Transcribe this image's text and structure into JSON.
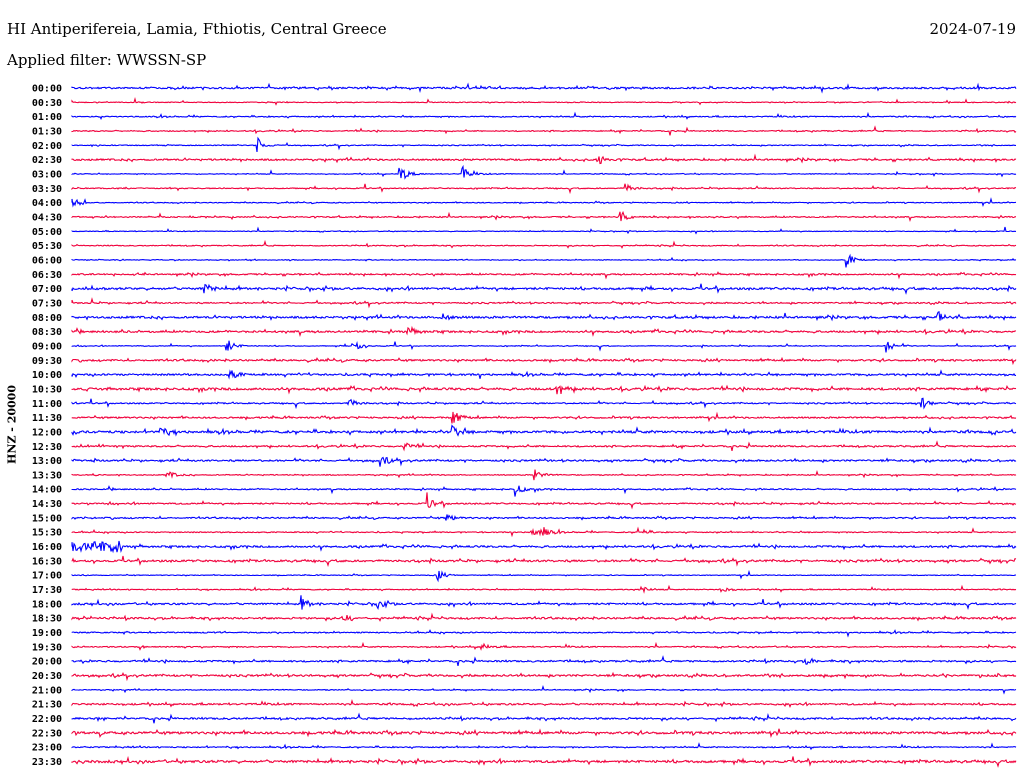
{
  "header": {
    "title": "HI Antiperifereia, Lamia, Fthiotis, Central Greece",
    "date": "2024-07-19",
    "filter": "Applied filter: WWSSN-SP"
  },
  "chart_data": {
    "type": "line",
    "title": "HI Antiperifereia, Lamia, Fthiotis, Central Greece",
    "ylabel": "HNZ - 20000",
    "minutes_per_line": 30,
    "colors": [
      "#0000ff",
      "#f0003c"
    ],
    "line_labels": [
      "00:00",
      "00:30",
      "01:00",
      "01:30",
      "02:00",
      "02:30",
      "03:00",
      "03:30",
      "04:00",
      "04:30",
      "05:00",
      "05:30",
      "06:00",
      "06:30",
      "07:00",
      "07:30",
      "08:00",
      "08:30",
      "09:00",
      "09:30",
      "10:00",
      "10:30",
      "11:00",
      "11:30",
      "12:00",
      "12:30",
      "13:00",
      "13:30",
      "14:00",
      "14:30",
      "15:00",
      "15:30",
      "16:00",
      "16:30",
      "17:00",
      "17:30",
      "18:00",
      "18:30",
      "19:00",
      "19:30",
      "20:00",
      "20:30",
      "21:00",
      "21:30",
      "22:00",
      "22:30",
      "23:00",
      "23:30"
    ],
    "events": [
      {
        "line": "02:00",
        "minute": 5.9,
        "amp": 8
      },
      {
        "line": "02:30",
        "minute": 16.7,
        "amp": 6
      },
      {
        "line": "03:00",
        "minute": 10.4,
        "amp": 10
      },
      {
        "line": "03:00",
        "minute": 12.4,
        "amp": 8
      },
      {
        "line": "03:30",
        "minute": 17.6,
        "amp": 5
      },
      {
        "line": "04:30",
        "minute": 17.4,
        "amp": 6
      },
      {
        "line": "06:00",
        "minute": 24.6,
        "amp": 8
      },
      {
        "line": "07:00",
        "minute": 4.2,
        "amp": 6
      },
      {
        "line": "08:00",
        "minute": 11.7,
        "amp": 5
      },
      {
        "line": "08:00",
        "minute": 27.5,
        "amp": 6
      },
      {
        "line": "08:30",
        "minute": 10.7,
        "amp": 6
      },
      {
        "line": "09:00",
        "minute": 4.9,
        "amp": 8
      },
      {
        "line": "09:00",
        "minute": 8.9,
        "amp": 8
      },
      {
        "line": "09:00",
        "minute": 25.9,
        "amp": 6
      },
      {
        "line": "10:00",
        "minute": 5.0,
        "amp": 6
      },
      {
        "line": "10:30",
        "minute": 15.4,
        "amp": 7
      },
      {
        "line": "11:00",
        "minute": 8.8,
        "amp": 6
      },
      {
        "line": "11:00",
        "minute": 27.0,
        "amp": 6
      },
      {
        "line": "11:30",
        "minute": 12.1,
        "amp": 7
      },
      {
        "line": "12:00",
        "minute": 2.8,
        "amp": 5
      },
      {
        "line": "12:00",
        "minute": 12.1,
        "amp": 6
      },
      {
        "line": "12:30",
        "minute": 10.5,
        "amp": 6
      },
      {
        "line": "13:00",
        "minute": 9.8,
        "amp": 5
      },
      {
        "line": "13:30",
        "minute": 3.0,
        "amp": 5
      },
      {
        "line": "13:30",
        "minute": 14.7,
        "amp": 6
      },
      {
        "line": "14:00",
        "minute": 14.1,
        "amp": 6
      },
      {
        "line": "14:30",
        "minute": 11.3,
        "amp": 6
      },
      {
        "line": "15:00",
        "minute": 11.9,
        "amp": 4
      },
      {
        "line": "15:30",
        "minute": 14.6,
        "amp": 6
      },
      {
        "line": "15:30",
        "minute": 14.9,
        "amp": 6
      },
      {
        "line": "15:30",
        "minute": 18.0,
        "amp": 5
      },
      {
        "line": "17:00",
        "minute": 11.6,
        "amp": 6
      },
      {
        "line": "17:30",
        "minute": 18.0,
        "amp": 5
      },
      {
        "line": "17:30",
        "minute": 20.6,
        "amp": 5
      },
      {
        "line": "18:00",
        "minute": 7.3,
        "amp": 6
      },
      {
        "line": "18:00",
        "minute": 9.7,
        "amp": 5
      },
      {
        "line": "18:30",
        "minute": 8.6,
        "amp": 5
      },
      {
        "line": "19:30",
        "minute": 13.0,
        "amp": 4
      },
      {
        "line": "20:00",
        "minute": 23.3,
        "amp": 4
      }
    ],
    "noisy_segments": [
      {
        "line": "16:00",
        "from_minute": 0,
        "to_minute": 1.6,
        "amp": 4
      },
      {
        "line": "04:00",
        "from_minute": 0,
        "to_minute": 0.5,
        "amp": 3
      }
    ]
  }
}
